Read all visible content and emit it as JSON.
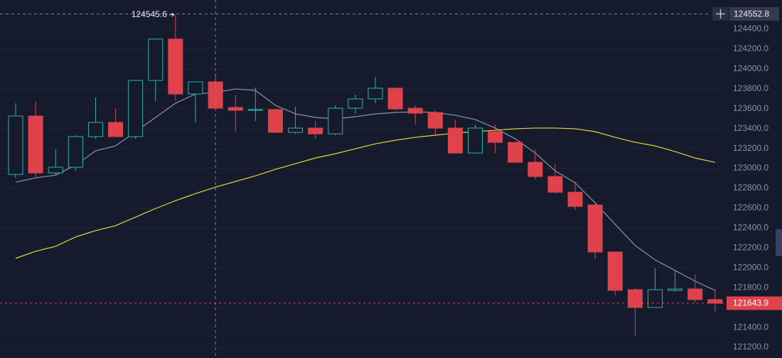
{
  "chart_data": {
    "type": "candlestick",
    "open": [
      122939,
      123526,
      122954,
      123011,
      123319,
      123462,
      123319,
      123884,
      124300,
      123748,
      123870,
      123612,
      123584,
      123591,
      123362,
      123405,
      123347,
      123605,
      123698,
      123806,
      123605,
      123562,
      123405,
      123154,
      123369,
      123261,
      123061,
      122918,
      122760,
      122632,
      122159,
      121780,
      121601,
      121773,
      121787,
      121680
    ],
    "high": [
      123655,
      123670,
      123190,
      123333,
      123713,
      123598,
      123891,
      124300,
      124545.6,
      123870,
      123956,
      123741,
      123813,
      123591,
      123620,
      123476,
      123634,
      123741,
      123920,
      123806,
      123634,
      123584,
      123490,
      123440,
      123440,
      123261,
      123190,
      123047,
      122868,
      122653,
      122159,
      121794,
      121995,
      121973,
      121937,
      121787
    ],
    "low": [
      122904,
      122904,
      122939,
      122975,
      123297,
      123319,
      123297,
      123677,
      123677,
      123462,
      123605,
      123369,
      123476,
      123362,
      123347,
      123297,
      123333,
      123548,
      123655,
      123584,
      123440,
      123333,
      123154,
      123154,
      123154,
      123061,
      122889,
      122746,
      122581,
      122087,
      121723,
      121315,
      121601,
      121758,
      121651,
      121558
    ],
    "close": [
      123526,
      122954,
      123011,
      123319,
      123462,
      123319,
      123884,
      124300,
      123748,
      123870,
      123605,
      123584,
      123591,
      123362,
      123405,
      123347,
      123605,
      123698,
      123806,
      123598,
      123555,
      123405,
      123154,
      123405,
      123261,
      123061,
      122918,
      122760,
      122617,
      122159,
      121773,
      121601,
      121780,
      121787,
      121680,
      121643.9
    ],
    "up_color": "#2bb5a0",
    "down_color": "#e0424b",
    "series": [
      {
        "color": "#8f93a8",
        "values": [
          122861,
          122904,
          122932,
          123032,
          123176,
          123226,
          123369,
          123512,
          123655,
          123748,
          123763,
          123798,
          123784,
          123634,
          123548,
          123512,
          123498,
          123519,
          123548,
          123562,
          123569,
          123562,
          123534,
          123491,
          123405,
          123297,
          123154,
          122975,
          122854,
          122653,
          122438,
          122224,
          122080,
          121973,
          121866,
          121773
        ]
      },
      {
        "color": "#e3d63a",
        "values": [
          122095,
          122166,
          122216,
          122310,
          122374,
          122424,
          122510,
          122596,
          122675,
          122746,
          122811,
          122868,
          122925,
          122990,
          123047,
          123104,
          123147,
          123197,
          123247,
          123283,
          123312,
          123333,
          123355,
          123369,
          123383,
          123398,
          123405,
          123405,
          123398,
          123369,
          123312,
          123262,
          123226,
          123169,
          123104,
          123061
        ]
      }
    ],
    "ylim": [
      121093,
      124693
    ],
    "yticks": [
      {
        "value": 121200,
        "label": "121200.0"
      },
      {
        "value": 121400,
        "label": "121400.0"
      },
      {
        "value": 121600,
        "label": "121600.0"
      },
      {
        "value": 121800,
        "label": "121800.0"
      },
      {
        "value": 122000,
        "label": "122000.0"
      },
      {
        "value": 122200,
        "label": "122200.0"
      },
      {
        "value": 122400,
        "label": "122400.0"
      },
      {
        "value": 122600,
        "label": "122600.0"
      },
      {
        "value": 122800,
        "label": "122800.0"
      },
      {
        "value": 123000,
        "label": "123000.0"
      },
      {
        "value": 123200,
        "label": "123200.0"
      },
      {
        "value": 123400,
        "label": "123400.0"
      },
      {
        "value": 123600,
        "label": "123600.0"
      },
      {
        "value": 123800,
        "label": "123800.0"
      },
      {
        "value": 124000,
        "label": "124000.0"
      },
      {
        "value": 124200,
        "label": "124200.0"
      },
      {
        "value": 124400,
        "label": "124400.0"
      }
    ],
    "grid": true,
    "max_label": "124545.6",
    "crosshair": {
      "value": 124552.8,
      "label": "124552.8",
      "index": 10
    },
    "last_price": {
      "value": 121643.9,
      "label": "121643.9"
    }
  }
}
